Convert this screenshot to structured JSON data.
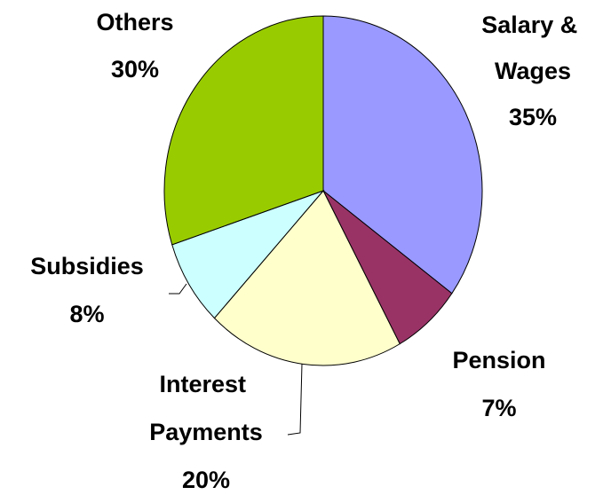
{
  "chart_data": {
    "type": "pie",
    "categories": [
      "Salary & Wages",
      "Pension",
      "Interest Payments",
      "Subsidies",
      "Others"
    ],
    "values": [
      35,
      7,
      20,
      8,
      30
    ],
    "value_labels": [
      "35%",
      "7%",
      "20%",
      "8%",
      "30%"
    ],
    "colors": [
      "#9999ff",
      "#993366",
      "#ffffcc",
      "#ccffff",
      "#99cc00"
    ]
  }
}
